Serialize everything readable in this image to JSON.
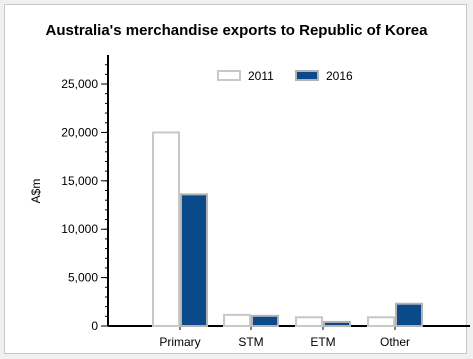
{
  "chart_data": {
    "type": "bar",
    "title": "Australia's merchandise exports to Republic of Korea",
    "ylabel": "A$m",
    "xlabel": "",
    "categories": [
      "Primary",
      "STM",
      "ETM",
      "Other"
    ],
    "series": [
      {
        "name": "2011",
        "values": [
          20000,
          1150,
          900,
          900
        ],
        "fill": "#ffffff",
        "stroke": "#c8c8c8"
      },
      {
        "name": "2016",
        "values": [
          13600,
          1050,
          420,
          2300
        ],
        "fill": "#0b4a8a",
        "stroke": "#b4b4b4"
      }
    ],
    "ylim": [
      0,
      28000
    ],
    "yticks": [
      0,
      5000,
      10000,
      15000,
      20000,
      25000
    ],
    "ytick_labels": [
      "0",
      "5,000",
      "10,000",
      "15,000",
      "20,000",
      "25,000"
    ],
    "grid": false,
    "legend_position": "top-right"
  }
}
